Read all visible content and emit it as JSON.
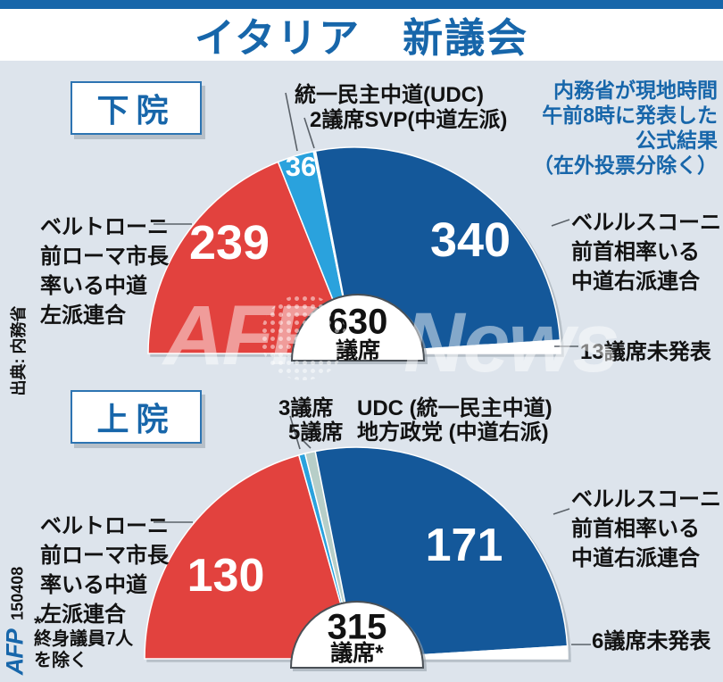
{
  "header": {
    "title": "イタリア　新議会"
  },
  "palette": {
    "accent_blue": "#1766aa",
    "red": "#e2423e",
    "dark_blue": "#14589a",
    "light_blue": "#2aa2dd",
    "pale_green": "#b7cec8",
    "background": "#dde4ec"
  },
  "official_note": {
    "lines": [
      "内務省が現地時間",
      "午前8時に発表した",
      "公式結果",
      "（在外投票分除く）"
    ]
  },
  "source_note": "出典: 内務省",
  "credit": {
    "agency": "AFP",
    "date_code": "150408"
  },
  "watermark": {
    "left_text": "AFP",
    "right_text": "News"
  },
  "lower_house": {
    "house_label": "下院",
    "labels": {
      "udc": "統一民主中道(UDC)",
      "svp": "2議席SVP(中道左派)",
      "left_coalition": [
        "ベルトローニ",
        "前ローマ市長",
        "率いる中道",
        "左派連合"
      ],
      "right_coalition": [
        "ベルルスコーニ",
        "前首相率いる",
        "中道右派連合"
      ],
      "undeclared": "13議席未発表"
    },
    "values": {
      "left": "239",
      "udc": "36",
      "right": "340"
    },
    "center": {
      "total": "630",
      "unit": "議席"
    }
  },
  "upper_house": {
    "house_label": "上院",
    "labels": {
      "udc_seats": "3議席",
      "udc": "UDC (統一民主中道)",
      "regional_seats": "5議席",
      "regional": "地方政党 (中道右派)",
      "left_coalition": [
        "ベルトローニ",
        "前ローマ市長",
        "率いる中道",
        "左派連合"
      ],
      "right_coalition": [
        "ベルルスコーニ",
        "前首相率いる",
        "中道右派連合"
      ],
      "undeclared": "6議席未発表",
      "footnote_mark": "*",
      "footnote": [
        "終身議員7人",
        "を除く"
      ]
    },
    "values": {
      "left": "130",
      "right": "171"
    },
    "center": {
      "total": "315",
      "unit": "議席*"
    }
  },
  "chart_data": [
    {
      "type": "pie",
      "variant": "hemicycle",
      "title": "下院",
      "total_seats": 630,
      "center_label": "630 議席",
      "segments": [
        {
          "key": "centre_left",
          "label": "ベルトローニ前ローマ市長率いる中道左派連合",
          "seats": 239,
          "color": "#e2423e"
        },
        {
          "key": "udc",
          "label": "統一民主中道(UDC)",
          "seats": 36,
          "color": "#2aa2dd"
        },
        {
          "key": "svp",
          "label": "SVP(中道左派)",
          "seats": 2,
          "color": "#ffffff"
        },
        {
          "key": "centre_right",
          "label": "ベルルスコーニ前首相率いる中道右派連合",
          "seats": 340,
          "color": "#14589a"
        },
        {
          "key": "undeclared",
          "label": "13議席未発表",
          "seats": 13,
          "color": "#ffffff"
        }
      ]
    },
    {
      "type": "pie",
      "variant": "hemicycle",
      "title": "上院",
      "total_seats": 315,
      "center_label": "315 議席*",
      "note": "* 終身議員7人を除く",
      "segments": [
        {
          "key": "centre_left",
          "label": "ベルトローニ前ローマ市長率いる中道左派連合",
          "seats": 130,
          "color": "#e2423e"
        },
        {
          "key": "udc",
          "label": "UDC (統一民主中道)",
          "seats": 3,
          "color": "#2aa2dd"
        },
        {
          "key": "regional",
          "label": "地方政党 (中道右派)",
          "seats": 5,
          "color": "#b7cec8"
        },
        {
          "key": "centre_right",
          "label": "ベルルスコーニ前首相率いる中道右派連合",
          "seats": 171,
          "color": "#14589a"
        },
        {
          "key": "undeclared",
          "label": "6議席未発表",
          "seats": 6,
          "color": "#ffffff"
        }
      ]
    }
  ]
}
